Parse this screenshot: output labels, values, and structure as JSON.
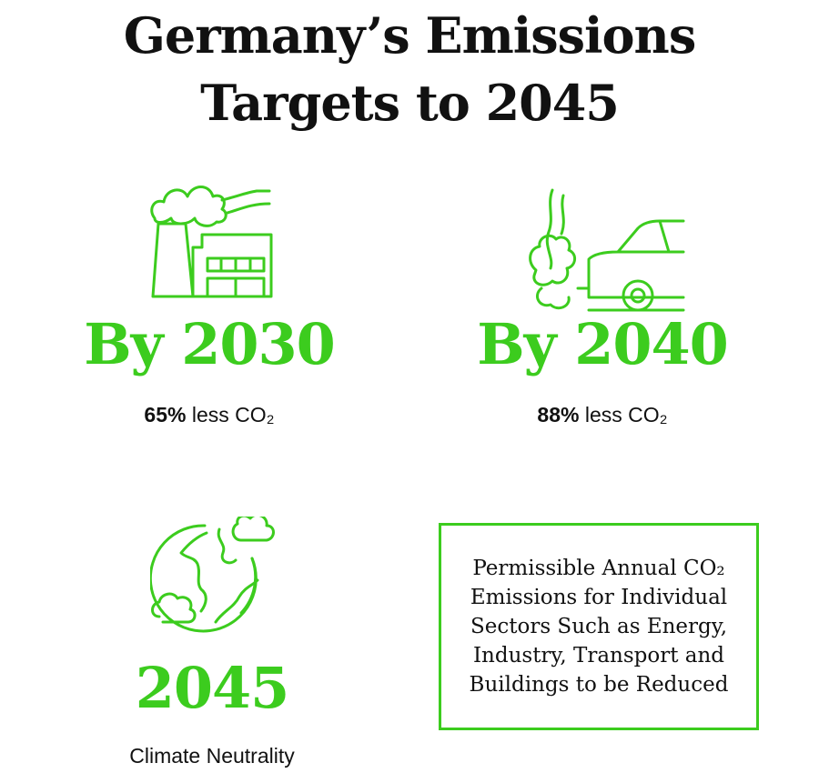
{
  "accent_color": "#3ccc1e",
  "title": {
    "line1": "Germany’s Emissions",
    "line2": "Targets to 2045"
  },
  "targets": [
    {
      "year_label": "By 2030",
      "value": "65%",
      "text": "less CO₂",
      "icon": "factory-icon"
    },
    {
      "year_label": "By 2040",
      "value": "88%",
      "text": "less CO₂",
      "icon": "car-exhaust-icon"
    },
    {
      "year_label": "2045",
      "text": "Climate Neutrality",
      "icon": "globe-cloud-icon"
    }
  ],
  "box": {
    "line1": "Permissible Annual CO₂",
    "line2": "Emissions for Individual",
    "line3": "Sectors Such as Energy,",
    "line4": "Industry, Transport and",
    "line5": "Buildings to be Reduced"
  }
}
